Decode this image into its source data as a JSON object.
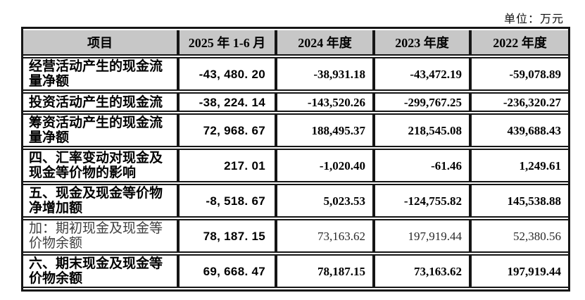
{
  "unit_label": "单位：万元",
  "colors": {
    "header_bg": "#c7c7c7",
    "border": "#161616",
    "text": "#000000",
    "light_text": "#3f3f3f"
  },
  "table": {
    "columns": [
      "项目",
      "2025 年 1-6 月",
      "2024 年度",
      "2023 年度",
      "2022 年度"
    ],
    "rows": [
      {
        "label": "经营活动产生的现金流量净额",
        "values": [
          "-43, 480. 20",
          "-38,931.18",
          "-43,472.19",
          "-59,078.89"
        ],
        "style": "bold",
        "lines": 2
      },
      {
        "label": "投资活动产生的现金流",
        "values": [
          "-38, 224. 14",
          "-143,520.26",
          "-299,767.25",
          "-236,320.27"
        ],
        "style": "bold",
        "lines": 1
      },
      {
        "label": "筹资活动产生的现金流量净额",
        "values": [
          "72, 968. 67",
          "188,495.37",
          "218,545.08",
          "439,688.43"
        ],
        "style": "bold",
        "lines": 2
      },
      {
        "label": "四、汇率变动对现金及现金等价物的影响",
        "values": [
          "217. 01",
          "-1,020.40",
          "-61.46",
          "1,249.61"
        ],
        "style": "bold",
        "lines": 2
      },
      {
        "label": "五、现金及现金等价物净增加额",
        "values": [
          "-8, 518. 67",
          "5,023.53",
          "-124,755.82",
          "145,538.88"
        ],
        "style": "bold",
        "lines": 2
      },
      {
        "label": "加：期初现金及现金等价物余额",
        "values": [
          "78, 187. 15",
          "73,163.62",
          "197,919.44",
          "52,380.56"
        ],
        "style": "light",
        "lines": 2
      },
      {
        "label": "六、期末现金及现金等价物余额",
        "values": [
          "69, 668. 47",
          "78,187.15",
          "73,163.62",
          "197,919.44"
        ],
        "style": "bold",
        "lines": 2
      }
    ]
  }
}
